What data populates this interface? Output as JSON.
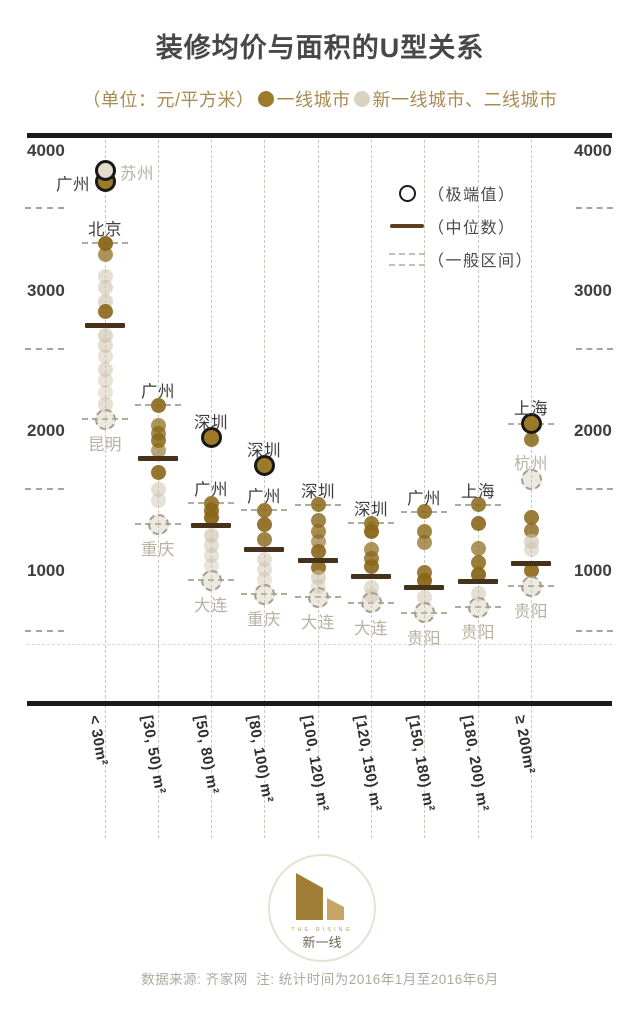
{
  "header": {
    "title": "装修均价与面积的U型关系",
    "unit_label": "（单位：元/平方米）",
    "tier1_label": "一线城市",
    "tier2_label": "新一线城市、二线城市"
  },
  "colors": {
    "tier1_gold": "#8a6618",
    "tier2_beige": "#c9bfa6",
    "median_bar": "#46311a",
    "extreme_ring": "#181818",
    "axis_bar": "#1b1b1b",
    "subtitle_text": "#ab8a52",
    "city_label_tier1": "#3f3f3f",
    "city_label_tier2": "#b8b2a5"
  },
  "chart_data": {
    "type": "scatter",
    "subtype": "strip-box distribution per floor-area bucket",
    "unit": "元/平方米",
    "title": "装修均价与面积的U型关系",
    "y_axis": {
      "ticks": [
        4000,
        3000,
        2000,
        1000
      ],
      "min": 0,
      "max": 4100,
      "sides": "both"
    },
    "inner_legend": [
      {
        "swatch": "circle",
        "label": "（极端值）"
      },
      {
        "swatch": "line",
        "label": "（中位数）"
      },
      {
        "swatch": "dashes",
        "label": "（一般区间）"
      }
    ],
    "categories": [
      "< 30m²",
      "[30, 50) m²",
      "[50, 80) m²",
      "[80, 100) m²",
      "[100, 120) m²",
      "[120, 150) m²",
      "[150, 180) m²",
      "[180, 200) m²",
      "≥ 200m²"
    ],
    "columns": [
      {
        "category": "< 30m²",
        "median": 2760,
        "range": [
          2090,
          3350
        ],
        "circled_extremes": [
          {
            "city": "广州",
            "value": 3790,
            "tier": 1,
            "label_pos": "left"
          },
          {
            "city": "苏州",
            "value": 3870,
            "tier": 2,
            "label_pos": "right"
          }
        ],
        "city_labels": [
          {
            "city": "北京",
            "value": 3350,
            "tier": 1,
            "pos": "above"
          }
        ],
        "dashed_outliers": [
          {
            "city": "昆明",
            "value": 2090,
            "label_pos": "below"
          }
        ],
        "dots": [
          [
            3350,
            1,
            0.95
          ],
          [
            3270,
            1,
            0.7
          ],
          [
            3110,
            2,
            0.5
          ],
          [
            3030,
            2,
            0.55
          ],
          [
            2930,
            2,
            0.6
          ],
          [
            2860,
            1,
            0.9
          ],
          [
            2690,
            2,
            0.6
          ],
          [
            2620,
            2,
            0.5
          ],
          [
            2540,
            2,
            0.45
          ],
          [
            2450,
            2,
            0.5
          ],
          [
            2370,
            2,
            0.45
          ],
          [
            2280,
            2,
            0.4
          ],
          [
            2200,
            2,
            0.5
          ]
        ]
      },
      {
        "category": "[30, 50) m²",
        "median": 1810,
        "range": [
          1340,
          2190
        ],
        "circled_extremes": [],
        "city_labels": [
          {
            "city": "广州",
            "value": 2190,
            "tier": 1,
            "pos": "above"
          }
        ],
        "dashed_outliers": [
          {
            "city": "重庆",
            "value": 1340,
            "label_pos": "below"
          }
        ],
        "dots": [
          [
            2190,
            1,
            0.9
          ],
          [
            2050,
            1,
            0.7
          ],
          [
            1990,
            1,
            0.75
          ],
          [
            1940,
            1,
            0.85
          ],
          [
            1870,
            1,
            0.6
          ],
          [
            1710,
            1,
            0.9
          ],
          [
            1590,
            2,
            0.5
          ],
          [
            1510,
            2,
            0.45
          ]
        ]
      },
      {
        "category": "[50, 80) m²",
        "median": 1330,
        "range": [
          940,
          1490
        ],
        "circled_extremes": [
          {
            "city": "深圳",
            "value": 1960,
            "tier": 1,
            "label_pos": "above"
          }
        ],
        "city_labels": [
          {
            "city": "广州",
            "value": 1490,
            "tier": 1,
            "pos": "above"
          }
        ],
        "dashed_outliers": [
          {
            "city": "大连",
            "value": 940,
            "label_pos": "below"
          }
        ],
        "dots": [
          [
            1490,
            1,
            0.85
          ],
          [
            1440,
            1,
            0.9
          ],
          [
            1390,
            1,
            0.95
          ],
          [
            1260,
            2,
            0.6
          ],
          [
            1190,
            2,
            0.5
          ],
          [
            1120,
            2,
            0.45
          ],
          [
            1050,
            2,
            0.4
          ]
        ]
      },
      {
        "category": "[80, 100) m²",
        "median": 1160,
        "range": [
          840,
          1440
        ],
        "circled_extremes": [
          {
            "city": "深圳",
            "value": 1760,
            "tier": 1,
            "label_pos": "above"
          }
        ],
        "city_labels": [
          {
            "city": "广州",
            "value": 1440,
            "tier": 1,
            "pos": "above"
          }
        ],
        "dashed_outliers": [
          {
            "city": "重庆",
            "value": 840,
            "label_pos": "below"
          }
        ],
        "dots": [
          [
            1440,
            1,
            0.85
          ],
          [
            1340,
            1,
            0.9
          ],
          [
            1230,
            1,
            0.8
          ],
          [
            1090,
            2,
            0.5
          ],
          [
            1020,
            2,
            0.45
          ],
          [
            950,
            2,
            0.4
          ]
        ]
      },
      {
        "category": "[100, 120) m²",
        "median": 1080,
        "range": [
          820,
          1480
        ],
        "circled_extremes": [],
        "city_labels": [
          {
            "city": "深圳",
            "value": 1480,
            "tier": 1,
            "pos": "above"
          }
        ],
        "dashed_outliers": [
          {
            "city": "大连",
            "value": 820,
            "label_pos": "below"
          }
        ],
        "dots": [
          [
            1480,
            1,
            0.85
          ],
          [
            1370,
            1,
            0.8
          ],
          [
            1290,
            1,
            0.75
          ],
          [
            1220,
            1,
            0.6
          ],
          [
            1150,
            1,
            0.9
          ],
          [
            1030,
            1,
            0.9
          ],
          [
            960,
            2,
            0.6
          ],
          [
            900,
            2,
            0.4
          ]
        ]
      },
      {
        "category": "[120, 150) m²",
        "median": 970,
        "range": [
          780,
          1350
        ],
        "circled_extremes": [],
        "city_labels": [
          {
            "city": "深圳",
            "value": 1350,
            "tier": 1,
            "pos": "above"
          }
        ],
        "dashed_outliers": [
          {
            "city": "大连",
            "value": 780,
            "label_pos": "below"
          }
        ],
        "dots": [
          [
            1350,
            1,
            0.85
          ],
          [
            1290,
            1,
            0.95
          ],
          [
            1160,
            1,
            0.7
          ],
          [
            1100,
            1,
            0.8
          ],
          [
            1040,
            1,
            0.9
          ],
          [
            890,
            2,
            0.5
          ],
          [
            830,
            2,
            0.4
          ]
        ]
      },
      {
        "category": "[150, 180) m²",
        "median": 890,
        "range": [
          710,
          1430
        ],
        "circled_extremes": [],
        "city_labels": [
          {
            "city": "广州",
            "value": 1430,
            "tier": 1,
            "pos": "above"
          }
        ],
        "dashed_outliers": [
          {
            "city": "贵阳",
            "value": 710,
            "label_pos": "below"
          }
        ],
        "dots": [
          [
            1430,
            1,
            0.85
          ],
          [
            1290,
            1,
            0.8
          ],
          [
            1210,
            1,
            0.7
          ],
          [
            1000,
            1,
            0.85
          ],
          [
            940,
            1,
            0.95
          ],
          [
            820,
            2,
            0.5
          ]
        ]
      },
      {
        "category": "[180, 200) m²",
        "median": 930,
        "range": [
          750,
          1480
        ],
        "circled_extremes": [],
        "city_labels": [
          {
            "city": "上海",
            "value": 1480,
            "tier": 1,
            "pos": "above"
          }
        ],
        "dashed_outliers": [
          {
            "city": "贵阳",
            "value": 750,
            "label_pos": "below"
          }
        ],
        "dots": [
          [
            1480,
            1,
            0.85
          ],
          [
            1350,
            1,
            0.9
          ],
          [
            1170,
            1,
            0.7
          ],
          [
            1070,
            1,
            0.85
          ],
          [
            980,
            1,
            0.95
          ],
          [
            850,
            2,
            0.5
          ]
        ]
      },
      {
        "category": "≥ 200m²",
        "median": 1060,
        "range": [
          900,
          2060
        ],
        "circled_extremes": [
          {
            "city": "上海",
            "value": 2060,
            "tier": 1,
            "label_pos": "above"
          }
        ],
        "city_labels": [],
        "dashed_outliers": [
          {
            "city": "杭州",
            "value": 1660,
            "label_pos": "above"
          },
          {
            "city": "贵阳",
            "value": 900,
            "label_pos": "below"
          }
        ],
        "dots": [
          [
            1950,
            1,
            0.85
          ],
          [
            1390,
            1,
            0.85
          ],
          [
            1300,
            1,
            0.8
          ],
          [
            1220,
            2,
            0.6
          ],
          [
            1160,
            2,
            0.5
          ],
          [
            1010,
            1,
            0.9
          ]
        ]
      }
    ]
  },
  "footer": {
    "source": "数据来源: 齐家网",
    "note": "注: 统计时间为2016年1月至2016年6月",
    "logo_text_en": "THE RISING",
    "logo_text_cn": "新一线"
  }
}
